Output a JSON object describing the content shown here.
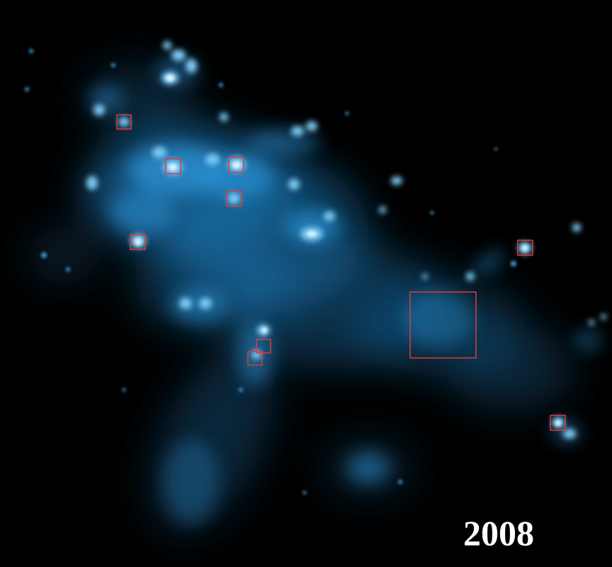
{
  "image": {
    "label": "2008",
    "colors": {
      "background": "#000000",
      "emission": "#2a8fd0",
      "emission_bright": "#8fd8ff",
      "region_marker": "#e03a3a",
      "label": "#ffffff"
    }
  }
}
